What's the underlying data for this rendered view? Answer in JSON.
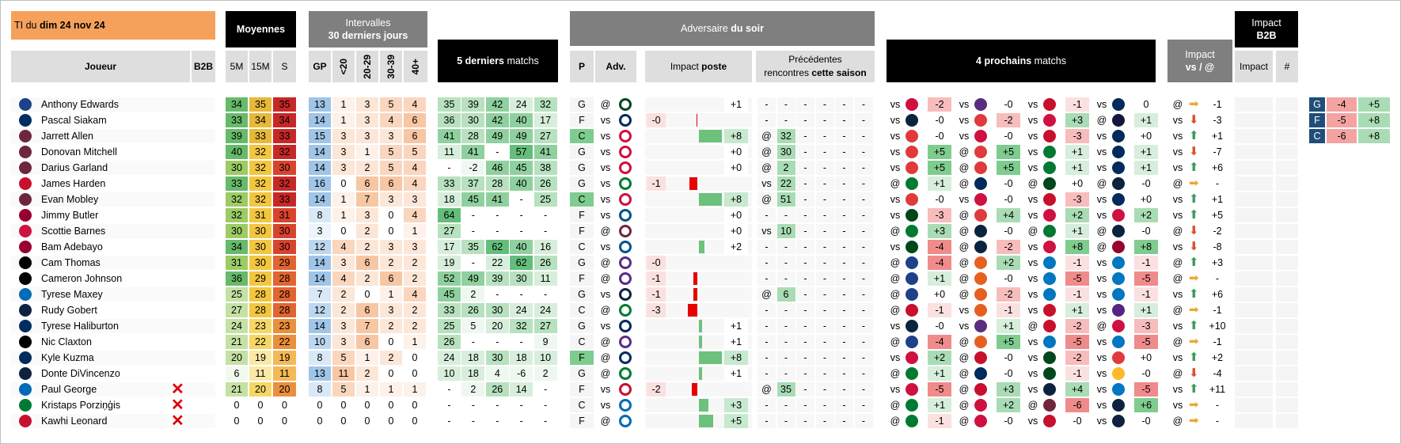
{
  "headers": {
    "title_prefix": "TI du",
    "title_date": "dim 24 nov 24",
    "moyennes": "Moyennes",
    "intervalles_l1": "Intervalles",
    "intervalles_l2": "30 derniers jours",
    "cinq_bold": "5 derniers",
    "cinq_rest": " matchs",
    "adv_soir_a": "Adversaire ",
    "adv_soir_b": "du soir",
    "quatre_bold": "4 prochains",
    "quatre_rest": " matchs",
    "impact_vs_l1": "Impact",
    "impact_vs_l2": "vs / @",
    "impact_b2b_l1": "Impact",
    "impact_b2b_l2": "B2B"
  },
  "subheaders": {
    "joueur": "Joueur",
    "b2b": "B2B",
    "m5": "5M",
    "m15": "15M",
    "s": "S",
    "gp": "GP",
    "lt20": "<20",
    "r2029": "20-29",
    "r3039": "30-39",
    "r40": "40+",
    "p": "P",
    "adv": "Adv.",
    "impact_poste_a": "Impact ",
    "impact_poste_b": "poste",
    "prec_l1": "Précédentes",
    "prec_l2a": "rencontres ",
    "prec_l2b": "cette saison",
    "impact": "Impact",
    "hash": "#"
  },
  "players": [
    {
      "name": "Anthony Edwards",
      "b2b": "",
      "m5": "34",
      "m15": "35",
      "s": "35",
      "gp": "13",
      "i1": "1",
      "i2": "3",
      "i3": "5",
      "i4": "4",
      "l5": [
        "35",
        "39",
        "42",
        "24",
        "32"
      ],
      "p": "G",
      "va": "@",
      "adv_pos": "",
      "pbar": 0,
      "pval": "+1",
      "prec": [
        "-",
        "-",
        "-",
        "-",
        "-",
        "-"
      ],
      "next": [
        [
          "vs",
          "-2"
        ],
        [
          "vs",
          "-0"
        ],
        [
          "vs",
          "-1"
        ],
        [
          "vs",
          "0"
        ]
      ],
      "ivs": "@",
      "iarrow": "right",
      "ival": "-1"
    },
    {
      "name": "Pascal Siakam",
      "b2b": "",
      "m5": "33",
      "m15": "34",
      "s": "34",
      "gp": "14",
      "i1": "1",
      "i2": "3",
      "i3": "4",
      "i4": "6",
      "l5": [
        "36",
        "30",
        "42",
        "40",
        "17"
      ],
      "p": "F",
      "va": "vs",
      "adv_pos": "-0",
      "pbar": -1,
      "pval": "",
      "prec": [
        "-",
        "-",
        "-",
        "-",
        "-",
        "-"
      ],
      "next": [
        [
          "vs",
          "-0"
        ],
        [
          "vs",
          "-2"
        ],
        [
          "vs",
          "+3"
        ],
        [
          "@",
          "+1"
        ]
      ],
      "ivs": "vs",
      "iarrow": "down",
      "ival": "-3"
    },
    {
      "name": "Jarrett Allen",
      "b2b": "",
      "m5": "39",
      "m15": "33",
      "s": "33",
      "gp": "15",
      "i1": "3",
      "i2": "3",
      "i3": "3",
      "i4": "6",
      "l5": [
        "41",
        "28",
        "49",
        "49",
        "27"
      ],
      "p": "C",
      "va": "vs",
      "adv_pos": "",
      "pbar": 24,
      "pval": "+8",
      "prec": [
        "@",
        "32",
        "-",
        "-",
        "-",
        "-"
      ],
      "next": [
        [
          "vs",
          "-0"
        ],
        [
          "vs",
          "-0"
        ],
        [
          "vs",
          "-3"
        ],
        [
          "vs",
          "+0"
        ]
      ],
      "ivs": "vs",
      "iarrow": "up",
      "ival": "+1"
    },
    {
      "name": "Donovan Mitchell",
      "b2b": "",
      "m5": "40",
      "m15": "32",
      "s": "32",
      "gp": "14",
      "i1": "3",
      "i2": "1",
      "i3": "5",
      "i4": "5",
      "l5": [
        "11",
        "41",
        "-",
        "57",
        "41"
      ],
      "p": "G",
      "va": "vs",
      "adv_pos": "",
      "pbar": 0,
      "pval": "+0",
      "prec": [
        "@",
        "30",
        "-",
        "-",
        "-",
        "-"
      ],
      "next": [
        [
          "vs",
          "+5"
        ],
        [
          "@",
          "+5"
        ],
        [
          "vs",
          "+1"
        ],
        [
          "vs",
          "+1"
        ]
      ],
      "ivs": "vs",
      "iarrow": "down",
      "ival": "-7"
    },
    {
      "name": "Darius Garland",
      "b2b": "",
      "m5": "30",
      "m15": "32",
      "s": "30",
      "gp": "14",
      "i1": "3",
      "i2": "2",
      "i3": "5",
      "i4": "4",
      "l5": [
        "-",
        "-2",
        "46",
        "45",
        "38"
      ],
      "p": "G",
      "va": "vs",
      "adv_pos": "",
      "pbar": 0,
      "pval": "+0",
      "prec": [
        "@",
        "2",
        "-",
        "-",
        "-",
        "-"
      ],
      "next": [
        [
          "vs",
          "+5"
        ],
        [
          "@",
          "+5"
        ],
        [
          "vs",
          "+1"
        ],
        [
          "vs",
          "+1"
        ]
      ],
      "ivs": "vs",
      "iarrow": "up",
      "ival": "+6"
    },
    {
      "name": "James Harden",
      "b2b": "",
      "m5": "33",
      "m15": "32",
      "s": "32",
      "gp": "16",
      "i1": "0",
      "i2": "6",
      "i3": "6",
      "i4": "4",
      "l5": [
        "33",
        "37",
        "28",
        "40",
        "26"
      ],
      "p": "G",
      "va": "vs",
      "adv_pos": "-1",
      "pbar": -8,
      "pval": "",
      "prec": [
        "vs",
        "22",
        "-",
        "-",
        "-",
        "-"
      ],
      "next": [
        [
          "@",
          "+1"
        ],
        [
          "@",
          "-0"
        ],
        [
          "@",
          "+0"
        ],
        [
          "@",
          "-0"
        ]
      ],
      "ivs": "@",
      "iarrow": "right",
      "ival": "-"
    },
    {
      "name": "Evan Mobley",
      "b2b": "",
      "m5": "32",
      "m15": "32",
      "s": "33",
      "gp": "14",
      "i1": "1",
      "i2": "7",
      "i3": "3",
      "i4": "3",
      "l5": [
        "18",
        "45",
        "41",
        "-",
        "25"
      ],
      "p": "C",
      "va": "vs",
      "adv_pos": "",
      "pbar": 24,
      "pval": "+8",
      "prec": [
        "@",
        "51",
        "-",
        "-",
        "-",
        "-"
      ],
      "next": [
        [
          "vs",
          "-0"
        ],
        [
          "vs",
          "-0"
        ],
        [
          "vs",
          "-3"
        ],
        [
          "vs",
          "+0"
        ]
      ],
      "ivs": "vs",
      "iarrow": "up",
      "ival": "+1"
    },
    {
      "name": "Jimmy Butler",
      "b2b": "",
      "m5": "32",
      "m15": "31",
      "s": "31",
      "gp": "8",
      "i1": "1",
      "i2": "3",
      "i3": "0",
      "i4": "4",
      "l5": [
        "64",
        "-",
        "-",
        "-",
        "-"
      ],
      "p": "F",
      "va": "vs",
      "adv_pos": "",
      "pbar": 0,
      "pval": "+0",
      "prec": [
        "-",
        "-",
        "-",
        "-",
        "-",
        "-"
      ],
      "next": [
        [
          "vs",
          "-3"
        ],
        [
          "@",
          "+4"
        ],
        [
          "vs",
          "+2"
        ],
        [
          "vs",
          "+2"
        ]
      ],
      "ivs": "vs",
      "iarrow": "up",
      "ival": "+5"
    },
    {
      "name": "Scottie Barnes",
      "b2b": "",
      "m5": "30",
      "m15": "30",
      "s": "30",
      "gp": "3",
      "i1": "0",
      "i2": "2",
      "i3": "0",
      "i4": "1",
      "l5": [
        "27",
        "-",
        "-",
        "-",
        "-"
      ],
      "p": "F",
      "va": "@",
      "adv_pos": "",
      "pbar": 0,
      "pval": "+0",
      "prec": [
        "vs",
        "10",
        "-",
        "-",
        "-",
        "-"
      ],
      "next": [
        [
          "@",
          "+3"
        ],
        [
          "@",
          "-0"
        ],
        [
          "@",
          "+1"
        ],
        [
          "@",
          "-0"
        ]
      ],
      "ivs": "@",
      "iarrow": "down",
      "ival": "-2"
    },
    {
      "name": "Bam Adebayo",
      "b2b": "",
      "m5": "34",
      "m15": "30",
      "s": "30",
      "gp": "12",
      "i1": "4",
      "i2": "2",
      "i3": "3",
      "i4": "3",
      "l5": [
        "17",
        "35",
        "62",
        "40",
        "16"
      ],
      "p": "C",
      "va": "vs",
      "adv_pos": "",
      "pbar": 6,
      "pval": "+2",
      "prec": [
        "-",
        "-",
        "-",
        "-",
        "-",
        "-"
      ],
      "next": [
        [
          "vs",
          "-4"
        ],
        [
          "@",
          "-2"
        ],
        [
          "vs",
          "+8"
        ],
        [
          "@",
          "+8"
        ]
      ],
      "ivs": "vs",
      "iarrow": "down",
      "ival": "-8"
    },
    {
      "name": "Cam Thomas",
      "b2b": "",
      "m5": "31",
      "m15": "30",
      "s": "29",
      "gp": "14",
      "i1": "3",
      "i2": "6",
      "i3": "2",
      "i4": "2",
      "l5": [
        "19",
        "-",
        "22",
        "62",
        "26"
      ],
      "p": "G",
      "va": "@",
      "adv_pos": "-0",
      "pbar": 0,
      "pval": "",
      "prec": [
        "-",
        "-",
        "-",
        "-",
        "-",
        "-"
      ],
      "next": [
        [
          "@",
          "-4"
        ],
        [
          "@",
          "+2"
        ],
        [
          "vs",
          "-1"
        ],
        [
          "vs",
          "-1"
        ]
      ],
      "ivs": "@",
      "iarrow": "up",
      "ival": "+3"
    },
    {
      "name": "Cameron Johnson",
      "b2b": "",
      "m5": "36",
      "m15": "29",
      "s": "28",
      "gp": "14",
      "i1": "4",
      "i2": "2",
      "i3": "6",
      "i4": "2",
      "l5": [
        "52",
        "49",
        "39",
        "30",
        "11"
      ],
      "p": "F",
      "va": "@",
      "adv_pos": "-1",
      "pbar": -4,
      "pval": "",
      "prec": [
        "-",
        "-",
        "-",
        "-",
        "-",
        "-"
      ],
      "next": [
        [
          "@",
          "+1"
        ],
        [
          "@",
          "-0"
        ],
        [
          "vs",
          "-5"
        ],
        [
          "vs",
          "-5"
        ]
      ],
      "ivs": "@",
      "iarrow": "right",
      "ival": "-"
    },
    {
      "name": "Tyrese Maxey",
      "b2b": "",
      "m5": "25",
      "m15": "28",
      "s": "28",
      "gp": "7",
      "i1": "2",
      "i2": "0",
      "i3": "1",
      "i4": "4",
      "l5": [
        "45",
        "2",
        "-",
        "-",
        "-"
      ],
      "p": "G",
      "va": "vs",
      "adv_pos": "-1",
      "pbar": -4,
      "pval": "",
      "prec": [
        "@",
        "6",
        "-",
        "-",
        "-",
        "-"
      ],
      "next": [
        [
          "@",
          "+0"
        ],
        [
          "@",
          "-2"
        ],
        [
          "vs",
          "-1"
        ],
        [
          "vs",
          "-1"
        ]
      ],
      "ivs": "vs",
      "iarrow": "up",
      "ival": "+6"
    },
    {
      "name": "Rudy Gobert",
      "b2b": "",
      "m5": "27",
      "m15": "28",
      "s": "28",
      "gp": "12",
      "i1": "2",
      "i2": "6",
      "i3": "3",
      "i4": "2",
      "l5": [
        "33",
        "26",
        "30",
        "24",
        "24"
      ],
      "p": "C",
      "va": "@",
      "adv_pos": "-3",
      "pbar": -10,
      "pval": "",
      "prec": [
        "-",
        "-",
        "-",
        "-",
        "-",
        "-"
      ],
      "next": [
        [
          "@",
          "-1"
        ],
        [
          "vs",
          "-1"
        ],
        [
          "vs",
          "+1"
        ],
        [
          "vs",
          "+1"
        ]
      ],
      "ivs": "@",
      "iarrow": "right",
      "ival": "-1"
    },
    {
      "name": "Tyrese Haliburton",
      "b2b": "",
      "m5": "24",
      "m15": "23",
      "s": "23",
      "gp": "14",
      "i1": "3",
      "i2": "7",
      "i3": "2",
      "i4": "2",
      "l5": [
        "25",
        "5",
        "20",
        "32",
        "27"
      ],
      "p": "G",
      "va": "vs",
      "adv_pos": "",
      "pbar": 3,
      "pval": "+1",
      "prec": [
        "-",
        "-",
        "-",
        "-",
        "-",
        "-"
      ],
      "next": [
        [
          "vs",
          "-0"
        ],
        [
          "vs",
          "+1"
        ],
        [
          "@",
          "-2"
        ],
        [
          "@",
          "-3"
        ]
      ],
      "ivs": "vs",
      "iarrow": "up",
      "ival": "+10"
    },
    {
      "name": "Nic Claxton",
      "b2b": "",
      "m5": "21",
      "m15": "22",
      "s": "22",
      "gp": "10",
      "i1": "3",
      "i2": "6",
      "i3": "0",
      "i4": "1",
      "l5": [
        "26",
        "-",
        "-",
        "-",
        "9"
      ],
      "p": "C",
      "va": "@",
      "adv_pos": "",
      "pbar": 3,
      "pval": "+1",
      "prec": [
        "-",
        "-",
        "-",
        "-",
        "-",
        "-"
      ],
      "next": [
        [
          "@",
          "-4"
        ],
        [
          "@",
          "+5"
        ],
        [
          "vs",
          "-5"
        ],
        [
          "vs",
          "-5"
        ]
      ],
      "ivs": "@",
      "iarrow": "right",
      "ival": "-1"
    },
    {
      "name": "Kyle Kuzma",
      "b2b": "",
      "m5": "20",
      "m15": "19",
      "s": "19",
      "gp": "8",
      "i1": "5",
      "i2": "1",
      "i3": "2",
      "i4": "0",
      "l5": [
        "24",
        "18",
        "30",
        "18",
        "10"
      ],
      "p": "F",
      "va": "@",
      "adv_pos": "",
      "pbar": 24,
      "pval": "+8",
      "prec": [
        "-",
        "-",
        "-",
        "-",
        "-",
        "-"
      ],
      "next": [
        [
          "vs",
          "+2"
        ],
        [
          "@",
          "-0"
        ],
        [
          "vs",
          "-2"
        ],
        [
          "vs",
          "+0"
        ]
      ],
      "ivs": "vs",
      "iarrow": "up",
      "ival": "+2"
    },
    {
      "name": "Donte DiVincenzo",
      "b2b": "",
      "m5": "6",
      "m15": "11",
      "s": "11",
      "gp": "13",
      "i1": "11",
      "i2": "2",
      "i3": "0",
      "i4": "0",
      "l5": [
        "10",
        "18",
        "4",
        "-6",
        "2"
      ],
      "p": "G",
      "va": "@",
      "adv_pos": "",
      "pbar": 3,
      "pval": "+1",
      "prec": [
        "-",
        "-",
        "-",
        "-",
        "-",
        "-"
      ],
      "next": [
        [
          "@",
          "+1"
        ],
        [
          "@",
          "-0"
        ],
        [
          "vs",
          "-1"
        ],
        [
          "vs",
          "-0"
        ]
      ],
      "ivs": "@",
      "iarrow": "down",
      "ival": "-4"
    },
    {
      "name": "Paul George",
      "b2b": "X",
      "m5": "21",
      "m15": "20",
      "s": "20",
      "gp": "8",
      "i1": "5",
      "i2": "1",
      "i3": "1",
      "i4": "1",
      "l5": [
        "-",
        "2",
        "26",
        "14",
        "-"
      ],
      "p": "F",
      "va": "vs",
      "adv_pos": "-2",
      "pbar": -6,
      "pval": "",
      "prec": [
        "@",
        "35",
        "-",
        "-",
        "-",
        "-"
      ],
      "next": [
        [
          "vs",
          "-5"
        ],
        [
          "@",
          "+3"
        ],
        [
          "vs",
          "+4"
        ],
        [
          "vs",
          "-5"
        ]
      ],
      "ivs": "vs",
      "iarrow": "up",
      "ival": "+11"
    },
    {
      "name": "Kristaps Porziņģis",
      "b2b": "X",
      "m5": "0",
      "m15": "0",
      "s": "0",
      "gp": "0",
      "i1": "0",
      "i2": "0",
      "i3": "0",
      "i4": "0",
      "l5": [
        "-",
        "-",
        "-",
        "-",
        "-"
      ],
      "p": "C",
      "va": "vs",
      "adv_pos": "",
      "pbar": 10,
      "pval": "+3",
      "prec": [
        "-",
        "-",
        "-",
        "-",
        "-",
        "-"
      ],
      "next": [
        [
          "@",
          "+1"
        ],
        [
          "@",
          "+2"
        ],
        [
          "@",
          "-6"
        ],
        [
          "vs",
          "+6"
        ]
      ],
      "ivs": "vs",
      "iarrow": "right",
      "ival": "-"
    },
    {
      "name": "Kawhi Leonard",
      "b2b": "X",
      "m5": "0",
      "m15": "0",
      "s": "0",
      "gp": "0",
      "i1": "0",
      "i2": "0",
      "i3": "0",
      "i4": "0",
      "l5": [
        "-",
        "-",
        "-",
        "-",
        "-"
      ],
      "p": "F",
      "va": "@",
      "adv_pos": "",
      "pbar": 15,
      "pval": "+5",
      "prec": [
        "-",
        "-",
        "-",
        "-",
        "-",
        "-"
      ],
      "next": [
        [
          "@",
          "-1"
        ],
        [
          "@",
          "-0"
        ],
        [
          "vs",
          "-0"
        ],
        [
          "vs",
          "-0"
        ]
      ],
      "ivs": "@",
      "iarrow": "right",
      "ival": "-"
    }
  ],
  "b2b_panel": [
    {
      "pos": "G",
      "a": "-4",
      "b": "+5"
    },
    {
      "pos": "F",
      "a": "-5",
      "b": "+8"
    },
    {
      "pos": "C",
      "a": "-6",
      "b": "+8"
    }
  ],
  "colors": {
    "high": "#d42a2a",
    "mid": "#f2c12e",
    "low": "#6fbf73",
    "gp": "#9fc5e8",
    "grid": "#f0f0f0"
  }
}
